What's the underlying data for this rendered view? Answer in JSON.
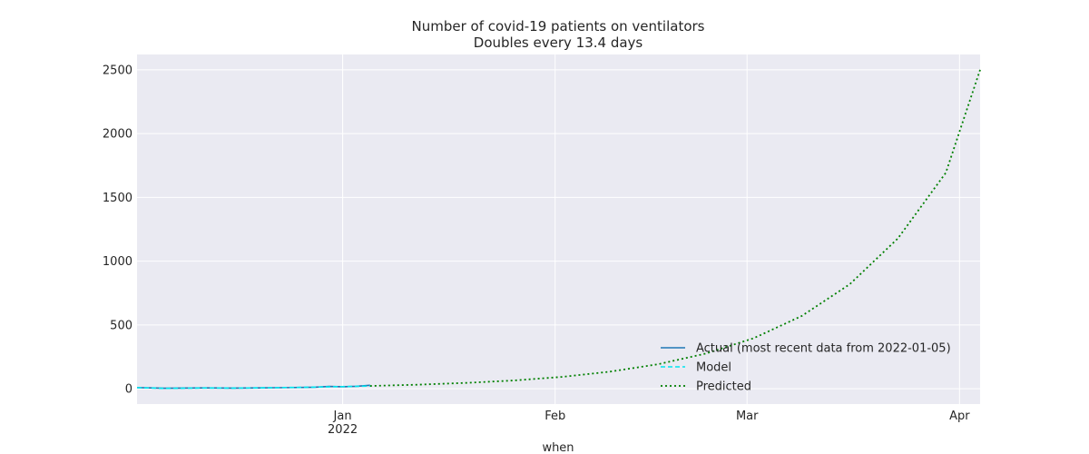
{
  "chart_data": {
    "type": "line",
    "title": "Number of covid-19 patients on ventilators",
    "subtitle": "Doubles every 13.4 days",
    "xlabel": "when",
    "ylabel": "",
    "xlim": [
      "2021-12-02",
      "2022-04-04"
    ],
    "ylim": [
      -120,
      2620
    ],
    "x_ticks": [
      {
        "date": "2022-01-01",
        "label": "Jan",
        "sublabel": "2022"
      },
      {
        "date": "2022-02-01",
        "label": "Feb",
        "sublabel": ""
      },
      {
        "date": "2022-03-01",
        "label": "Mar",
        "sublabel": ""
      },
      {
        "date": "2022-04-01",
        "label": "Apr",
        "sublabel": ""
      }
    ],
    "y_ticks": [
      0,
      500,
      1000,
      1500,
      2000,
      2500
    ],
    "grid": true,
    "legend_position": "lower-right",
    "colors": {
      "background": "#eaeaf2",
      "grid": "#ffffff",
      "actual": "#1f77b4",
      "model": "#00e5ee",
      "predicted": "#008000"
    },
    "series": [
      {
        "name": "Actual (most recent data from 2022-01-05)",
        "style": "solid",
        "x": [
          "2021-12-02",
          "2021-12-04",
          "2021-12-06",
          "2021-12-08",
          "2021-12-10",
          "2021-12-12",
          "2021-12-14",
          "2021-12-16",
          "2021-12-18",
          "2021-12-20",
          "2021-12-22",
          "2021-12-24",
          "2021-12-26",
          "2021-12-28",
          "2021-12-30",
          "2022-01-01",
          "2022-01-03",
          "2022-01-05"
        ],
        "y": [
          9,
          7,
          4,
          5,
          6,
          7,
          6,
          5,
          6,
          7,
          8,
          9,
          10,
          12,
          18,
          16,
          19,
          27
        ]
      },
      {
        "name": "Model",
        "style": "dashed",
        "x": [
          "2021-12-02",
          "2021-12-04",
          "2021-12-06",
          "2021-12-08",
          "2021-12-10",
          "2021-12-12",
          "2021-12-14",
          "2021-12-16",
          "2021-12-18",
          "2021-12-20",
          "2021-12-22",
          "2021-12-24",
          "2021-12-26",
          "2021-12-28",
          "2021-12-30",
          "2022-01-01",
          "2022-01-03",
          "2022-01-05"
        ],
        "y": [
          8,
          6,
          3,
          4,
          5,
          6,
          6,
          5,
          6,
          7,
          8,
          10,
          11,
          13,
          15,
          17,
          19,
          21
        ]
      },
      {
        "name": "Predicted",
        "style": "dotted",
        "x": [
          "2022-01-05",
          "2022-01-12",
          "2022-01-19",
          "2022-01-26",
          "2022-02-02",
          "2022-02-09",
          "2022-02-16",
          "2022-02-23",
          "2022-03-02",
          "2022-03-09",
          "2022-03-16",
          "2022-03-23",
          "2022-03-30",
          "2022-04-04"
        ],
        "y": [
          22,
          32,
          46,
          65,
          93,
          134,
          192,
          276,
          397,
          571,
          820,
          1178,
          1693,
          2500
        ]
      }
    ]
  }
}
